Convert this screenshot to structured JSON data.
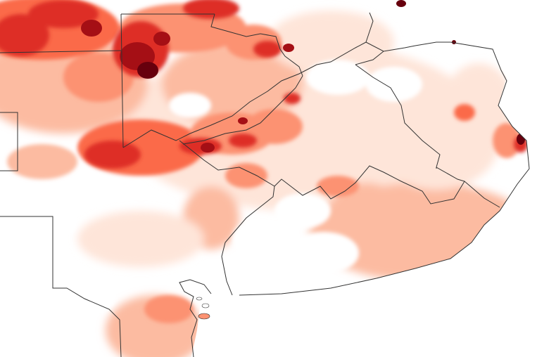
{
  "map": {
    "type": "choropleth-heatmap",
    "color_scale": [
      "#ffffff",
      "#fee5d9",
      "#fcbba1",
      "#fc9272",
      "#fb6a4a",
      "#de2d26",
      "#a50f15",
      "#67000d"
    ],
    "land_color": "#ffffff",
    "border_color": "#333333",
    "coastline_color": "#333333",
    "legend": "none",
    "labels": []
  }
}
